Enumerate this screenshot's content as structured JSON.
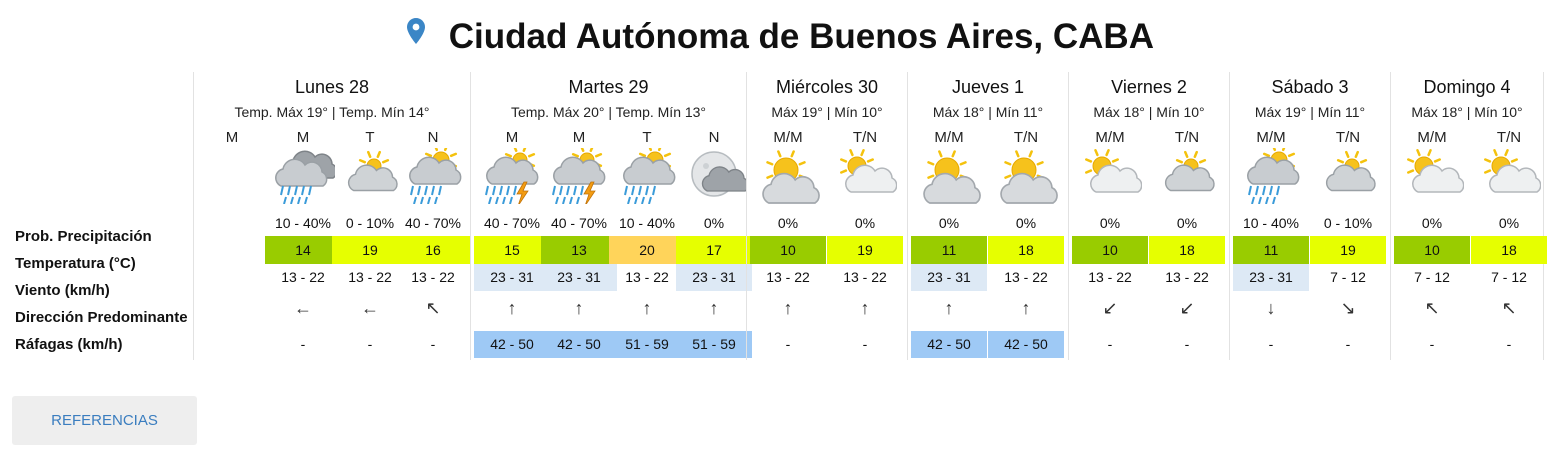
{
  "location": {
    "title": "Ciudad Autónoma de Buenos Aires, CABA",
    "icon": "map-pin-icon"
  },
  "row_labels": [
    "Prob. Precipitación",
    "Temperatura (°C)",
    "Viento (km/h)",
    "Dirección Predominante",
    "Ráfagas (km/h)"
  ],
  "days": [
    {
      "name": "Lunes 28",
      "summary": "Temp. Máx 19° | Temp. Mín 14°",
      "periods": [
        {
          "label": "M",
          "icon": null,
          "prob": "",
          "temp": "",
          "temp_color": "",
          "wind": "",
          "wind_bg": "",
          "dir": "",
          "gust": "",
          "gust_bg": ""
        },
        {
          "label": "M",
          "icon": "cloud-rain",
          "prob": "10 - 40%",
          "temp": "14",
          "temp_color": "#99cc00",
          "wind": "13 - 22",
          "wind_bg": "",
          "dir": "←",
          "gust": "-",
          "gust_bg": ""
        },
        {
          "label": "T",
          "icon": "partly-cloudy-night",
          "prob": "0 - 10%",
          "temp": "19",
          "temp_color": "#e6ff00",
          "wind": "13 - 22",
          "wind_bg": "",
          "dir": "←",
          "gust": "-",
          "gust_bg": ""
        },
        {
          "label": "N",
          "icon": "cloud-rain-sun",
          "prob": "40 - 70%",
          "temp": "16",
          "temp_color": "#e6ff00",
          "wind": "13 - 22",
          "wind_bg": "",
          "dir": "↖",
          "gust": "-",
          "gust_bg": ""
        }
      ]
    },
    {
      "name": "Martes 29",
      "summary": "Temp. Máx 20° | Temp. Mín 13°",
      "periods": [
        {
          "label": "M",
          "icon": "cloud-storm",
          "prob": "40 - 70%",
          "temp": "15",
          "temp_color": "#e6ff00",
          "wind": "23 - 31",
          "wind_bg": "#dde9f5",
          "dir": "↑",
          "gust": "42 - 50",
          "gust_bg": "#9ec9f5"
        },
        {
          "label": "M",
          "icon": "cloud-storm",
          "prob": "40 - 70%",
          "temp": "13",
          "temp_color": "#99cc00",
          "wind": "23 - 31",
          "wind_bg": "#dde9f5",
          "dir": "↑",
          "gust": "42 - 50",
          "gust_bg": "#9ec9f5"
        },
        {
          "label": "T",
          "icon": "cloud-rain-sun",
          "prob": "10 - 40%",
          "temp": "20",
          "temp_color": "#ffd45a",
          "wind": "13 - 22",
          "wind_bg": "",
          "dir": "↑",
          "gust": "51 - 59",
          "gust_bg": "#9ec9f5"
        },
        {
          "label": "N",
          "icon": "moon-cloud",
          "prob": "0%",
          "temp": "17",
          "temp_color": "#e6ff00",
          "wind": "23 - 31",
          "wind_bg": "#dde9f5",
          "dir": "↑",
          "gust": "51 - 59",
          "gust_bg": "#9ec9f5"
        }
      ]
    },
    {
      "name": "Miércoles 30",
      "summary": "Máx 19° | Mín 10°",
      "periods": [
        {
          "label": "M/M",
          "icon": "sun-cloud",
          "prob": "0%",
          "temp": "10",
          "temp_color": "#99cc00",
          "wind": "13 - 22",
          "wind_bg": "",
          "dir": "↑",
          "gust": "-",
          "gust_bg": ""
        },
        {
          "label": "T/N",
          "icon": "partly-cloudy",
          "prob": "0%",
          "temp": "19",
          "temp_color": "#e6ff00",
          "wind": "13 - 22",
          "wind_bg": "",
          "dir": "↑",
          "gust": "-",
          "gust_bg": ""
        }
      ]
    },
    {
      "name": "Jueves 1",
      "summary": "Máx 18° | Mín 11°",
      "periods": [
        {
          "label": "M/M",
          "icon": "sun-cloud",
          "prob": "0%",
          "temp": "11",
          "temp_color": "#99cc00",
          "wind": "23 - 31",
          "wind_bg": "#dde9f5",
          "dir": "↑",
          "gust": "42 - 50",
          "gust_bg": "#9ec9f5"
        },
        {
          "label": "T/N",
          "icon": "sun-cloud",
          "prob": "0%",
          "temp": "18",
          "temp_color": "#e6ff00",
          "wind": "13 - 22",
          "wind_bg": "",
          "dir": "↑",
          "gust": "42 - 50",
          "gust_bg": "#9ec9f5"
        }
      ]
    },
    {
      "name": "Viernes 2",
      "summary": "Máx 18° | Mín 10°",
      "periods": [
        {
          "label": "M/M",
          "icon": "partly-cloudy",
          "prob": "0%",
          "temp": "10",
          "temp_color": "#99cc00",
          "wind": "13 - 22",
          "wind_bg": "",
          "dir": "↙",
          "gust": "-",
          "gust_bg": ""
        },
        {
          "label": "T/N",
          "icon": "partly-cloudy-night",
          "prob": "0%",
          "temp": "18",
          "temp_color": "#e6ff00",
          "wind": "13 - 22",
          "wind_bg": "",
          "dir": "↙",
          "gust": "-",
          "gust_bg": ""
        }
      ]
    },
    {
      "name": "Sábado 3",
      "summary": "Máx 19° | Mín 11°",
      "periods": [
        {
          "label": "M/M",
          "icon": "cloud-rain-sun",
          "prob": "10 - 40%",
          "temp": "11",
          "temp_color": "#99cc00",
          "wind": "23 - 31",
          "wind_bg": "#dde9f5",
          "dir": "↓",
          "gust": "-",
          "gust_bg": ""
        },
        {
          "label": "T/N",
          "icon": "partly-cloudy-night",
          "prob": "0 - 10%",
          "temp": "19",
          "temp_color": "#e6ff00",
          "wind": "7 - 12",
          "wind_bg": "",
          "dir": "↘",
          "gust": "-",
          "gust_bg": ""
        }
      ]
    },
    {
      "name": "Domingo 4",
      "summary": "Máx 18° | Mín 10°",
      "periods": [
        {
          "label": "M/M",
          "icon": "partly-cloudy",
          "prob": "0%",
          "temp": "10",
          "temp_color": "#99cc00",
          "wind": "7 - 12",
          "wind_bg": "",
          "dir": "↖",
          "gust": "-",
          "gust_bg": ""
        },
        {
          "label": "T/N",
          "icon": "partly-cloudy",
          "prob": "0%",
          "temp": "18",
          "temp_color": "#e6ff00",
          "wind": "7 - 12",
          "wind_bg": "",
          "dir": "↖",
          "gust": "-",
          "gust_bg": ""
        }
      ]
    }
  ],
  "references_button": "REFERENCIAS"
}
